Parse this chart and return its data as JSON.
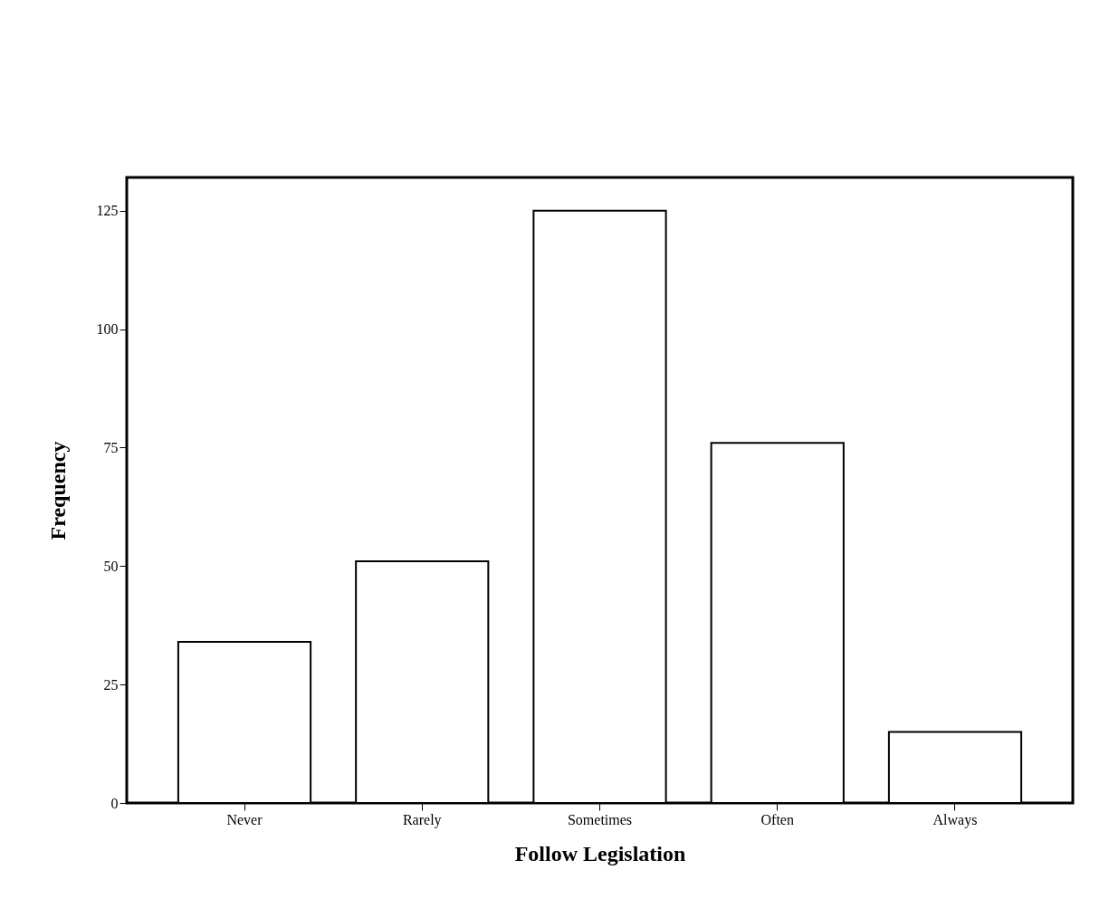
{
  "chart_data": {
    "type": "bar",
    "xlabel": "Follow Legislation",
    "ylabel": "Frequency",
    "categories": [
      "Never",
      "Rarely",
      "Sometimes",
      "Often",
      "Always"
    ],
    "values": [
      34,
      51,
      125,
      76,
      15
    ],
    "color": "#ffffff",
    "ylim": [
      0,
      132
    ],
    "yticks": [
      0,
      25,
      50,
      75,
      100,
      125
    ],
    "grid": false
  }
}
